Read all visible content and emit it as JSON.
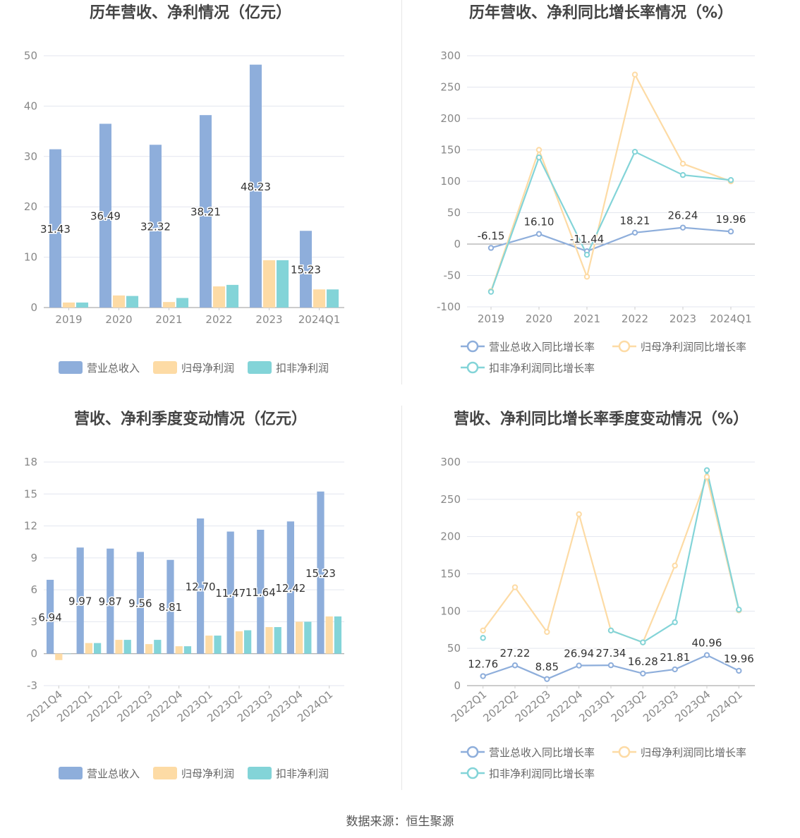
{
  "source": "数据来源：恒生聚源",
  "chart_data": [
    {
      "type": "bar",
      "title": "历年营收、净利情况（亿元）",
      "categories": [
        "2019",
        "2020",
        "2021",
        "2022",
        "2023",
        "2024Q1"
      ],
      "ylim": [
        0,
        50
      ],
      "yticks": [
        0,
        10,
        20,
        30,
        40,
        50
      ],
      "series": [
        {
          "name": "营业总收入",
          "color": "#8eaedb",
          "values": [
            31.43,
            36.49,
            32.32,
            38.21,
            48.23,
            15.23
          ],
          "labels": [
            "31.43",
            "36.49",
            "32.32",
            "38.21",
            "48.23",
            "15.23"
          ]
        },
        {
          "name": "归母净利润",
          "color": "#fddba5",
          "values": [
            1.0,
            2.4,
            1.1,
            4.2,
            9.4,
            3.6
          ]
        },
        {
          "name": "扣非净利润",
          "color": "#83d4d8",
          "values": [
            1.0,
            2.3,
            1.9,
            4.5,
            9.4,
            3.6
          ]
        }
      ],
      "grid": true,
      "legend": "bottom"
    },
    {
      "type": "line",
      "title": "历年营收、净利同比增长率情况（%）",
      "categories": [
        "2019",
        "2020",
        "2021",
        "2022",
        "2023",
        "2024Q1"
      ],
      "ylim": [
        -100,
        300
      ],
      "yticks": [
        -100,
        -50,
        0,
        50,
        100,
        150,
        200,
        250,
        300
      ],
      "series": [
        {
          "name": "营业总收入同比增长率",
          "color": "#8eaedb",
          "values": [
            -6.15,
            16.1,
            -11.44,
            18.21,
            26.24,
            19.96
          ],
          "labels": [
            "-6.15",
            "16.10",
            "-11.44",
            "18.21",
            "26.24",
            "19.96"
          ]
        },
        {
          "name": "归母净利润同比增长率",
          "color": "#fddba5",
          "values": [
            -75,
            150,
            -52,
            270,
            128,
            100
          ]
        },
        {
          "name": "扣非净利润同比增长率",
          "color": "#83d4d8",
          "values": [
            -76,
            138,
            -17,
            147,
            110,
            102
          ]
        }
      ],
      "grid": true,
      "legend": "bottom"
    },
    {
      "type": "bar",
      "title": "营收、净利季度变动情况（亿元）",
      "categories": [
        "2021Q4",
        "2022Q1",
        "2022Q2",
        "2022Q3",
        "2022Q4",
        "2023Q1",
        "2023Q2",
        "2023Q3",
        "2023Q4",
        "2024Q1"
      ],
      "ylim": [
        -3,
        18
      ],
      "yticks": [
        -3,
        0,
        3,
        6,
        9,
        12,
        15,
        18
      ],
      "series": [
        {
          "name": "营业总收入",
          "color": "#8eaedb",
          "values": [
            6.94,
            9.97,
            9.87,
            9.56,
            8.81,
            12.7,
            11.47,
            11.64,
            12.42,
            15.23
          ],
          "labels": [
            "6.94",
            "9.97",
            "9.87",
            "9.56",
            "8.81",
            "12.70",
            "11.47",
            "11.64",
            "12.42",
            "15.23"
          ]
        },
        {
          "name": "归母净利润",
          "color": "#fddba5",
          "values": [
            -0.6,
            1.0,
            1.3,
            0.9,
            0.7,
            1.7,
            2.1,
            2.5,
            3.0,
            3.5
          ]
        },
        {
          "name": "扣非净利润",
          "color": "#83d4d8",
          "values": [
            0.0,
            1.0,
            1.3,
            1.3,
            0.7,
            1.7,
            2.2,
            2.5,
            3.0,
            3.5
          ]
        }
      ],
      "grid": true,
      "legend": "bottom"
    },
    {
      "type": "line",
      "title": "营收、净利同比增长率季度变动情况（%）",
      "categories": [
        "2022Q1",
        "2022Q2",
        "2022Q3",
        "2022Q4",
        "2023Q1",
        "2023Q2",
        "2023Q3",
        "2023Q4",
        "2024Q1"
      ],
      "ylim": [
        0,
        300
      ],
      "yticks": [
        0,
        50,
        100,
        150,
        200,
        250,
        300
      ],
      "series": [
        {
          "name": "营业总收入同比增长率",
          "color": "#8eaedb",
          "values": [
            12.76,
            27.22,
            8.85,
            26.94,
            27.34,
            16.28,
            21.81,
            40.96,
            19.96
          ],
          "labels": [
            "12.76",
            "27.22",
            "8.85",
            "26.94",
            "27.34",
            "16.28",
            "21.81",
            "40.96",
            "19.96"
          ]
        },
        {
          "name": "归母净利润同比增长率",
          "color": "#fddba5",
          "values": [
            74,
            132,
            72,
            230,
            74,
            58,
            161,
            280,
            101
          ]
        },
        {
          "name": "扣非净利润同比增长率",
          "color": "#83d4d8",
          "values": [
            64,
            null,
            null,
            null,
            74,
            58,
            85,
            289,
            102
          ]
        }
      ],
      "grid": true,
      "legend": "bottom"
    }
  ]
}
